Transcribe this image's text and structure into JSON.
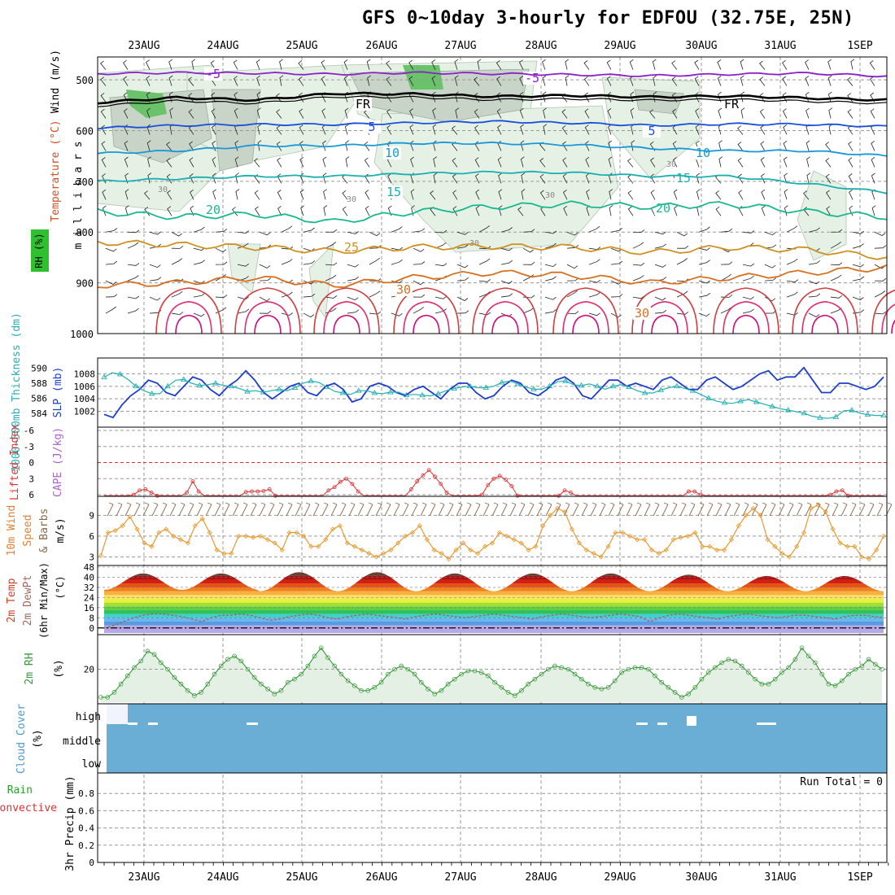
{
  "title": "GFS 0~10day 3-hourly for EDFOU (32.75E, 25N)",
  "dates": [
    "23AUG",
    "24AUG",
    "25AUG",
    "26AUG",
    "27AUG",
    "28AUG",
    "29AUG",
    "30AUG",
    "31AUG",
    "1SEP"
  ],
  "colors": {
    "grid": "#9a9a9a",
    "freezing": "#000000",
    "rh_light": "#e6f1e6",
    "rh_mid": "#c8d4c8",
    "rh_dark": "#8aa08a",
    "rh_green": "#6ac26a",
    "slp": "#1d3fcc",
    "thickness": "#22b0b5",
    "cape": "#e03030",
    "wind10": "#e89a30",
    "barb10": "#8a6a4a",
    "rh2m": "#3a9a3a",
    "rh2m_fill": "#e4f0e4",
    "cloud": "#6aaed6",
    "dew": "#a06a5a"
  },
  "chart_data": [
    {
      "type": "contour",
      "panel": "upper-air",
      "ylabel": "millibars",
      "side_labels": [
        "Wind (m/s)",
        "Temperature (°C)",
        "RH (%)"
      ],
      "y_ticks": [
        500,
        600,
        700,
        800,
        900,
        1000
      ],
      "ylim": [
        455,
        1000
      ],
      "x_labels": [
        "23AUG",
        "24AUG",
        "25AUG",
        "26AUG",
        "27AUG",
        "28AUG",
        "29AUG",
        "30AUG",
        "31AUG",
        "1SEP"
      ],
      "isotherm_labels": [
        "-5",
        "FR",
        "5",
        "10",
        "15",
        "20",
        "25",
        "30"
      ],
      "rh_label": "30",
      "isotherms": [
        {
          "t": -5,
          "p": [
            488,
            486,
            487,
            489,
            486,
            488,
            490,
            492,
            489,
            487,
            493
          ]
        },
        {
          "t": 0,
          "p": [
            545,
            535,
            540,
            527,
            528,
            533,
            531,
            534,
            532,
            536,
            540
          ]
        },
        {
          "t": 5,
          "p": [
            595,
            590,
            588,
            588,
            585,
            582,
            585,
            590,
            587,
            588,
            592
          ]
        },
        {
          "t": 10,
          "p": [
            645,
            640,
            630,
            630,
            625,
            625,
            628,
            635,
            640,
            640,
            650
          ]
        },
        {
          "t": 15,
          "p": [
            700,
            695,
            690,
            690,
            685,
            682,
            683,
            690,
            690,
            705,
            722
          ]
        },
        {
          "t": 20,
          "p": [
            760,
            770,
            765,
            780,
            760,
            750,
            745,
            750,
            745,
            760,
            770
          ]
        },
        {
          "t": 25,
          "p": [
            820,
            825,
            830,
            838,
            830,
            828,
            830,
            840,
            830,
            835,
            850
          ]
        },
        {
          "t": 30,
          "p": [
            905,
            900,
            890,
            905,
            890,
            880,
            885,
            900,
            890,
            880,
            870
          ]
        }
      ]
    },
    {
      "type": "line",
      "panel": "pressure",
      "ylabel_left": "1000~500mb Thickness (dm)",
      "ylabel_right": "SLP (mb)",
      "left_ticks": [
        584,
        586,
        588,
        590
      ],
      "right_ticks": [
        1002,
        1004,
        1006,
        1008
      ],
      "series": [
        {
          "name": "SLP",
          "axis": "right",
          "values": [
            1001.5,
            1001.0,
            1003.0,
            1004.5,
            1005.5,
            1007.0,
            1006.5,
            1005.0,
            1004.5,
            1006.0,
            1007.5,
            1007.0,
            1005.5,
            1004.5,
            1006.0,
            1007.0,
            1008.5,
            1007.0,
            1005.0,
            1004.0,
            1005.0,
            1006.0,
            1006.5,
            1005.0,
            1004.5,
            1006.0,
            1006.5,
            1005.5,
            1003.5,
            1004.0,
            1006.0,
            1006.5,
            1006.0,
            1005.0,
            1004.5,
            1005.5,
            1006.0,
            1005.0,
            1004.0,
            1005.5,
            1006.5,
            1006.5,
            1005.0,
            1004.0,
            1004.5,
            1006.0,
            1007.0,
            1006.5,
            1005.0,
            1004.5,
            1005.5,
            1007.0,
            1007.5,
            1006.5,
            1004.5,
            1004.0,
            1005.5,
            1007.0,
            1007.0,
            1006.0,
            1006.5,
            1006.0,
            1005.5,
            1007.0,
            1007.5,
            1006.5,
            1005.5,
            1005.5,
            1007.0,
            1007.5,
            1006.5,
            1005.5,
            1006.0,
            1007.0,
            1008.0,
            1008.5,
            1007.0,
            1007.5,
            1007.5,
            1009.0,
            1007.0,
            1005.0,
            1005.0,
            1006.5,
            1006.5,
            1006.0,
            1005.5,
            1006.0,
            1007.5
          ]
        },
        {
          "name": "Thickness",
          "axis": "left",
          "values": [
            588.8,
            589.4,
            589.2,
            588.5,
            587.6,
            587.0,
            586.6,
            586.6,
            587.6,
            588.4,
            588.5,
            588.0,
            587.7,
            587.8,
            588.0,
            587.7,
            587.6,
            587.3,
            586.9,
            587.0,
            586.8,
            587.0,
            587.2,
            587.0,
            587.4,
            588.0,
            588.3,
            588.1,
            587.5,
            586.9,
            586.7,
            586.5,
            587.0,
            587.0,
            586.7,
            586.6,
            586.8,
            586.8,
            586.4,
            586.5,
            586.4,
            586.3,
            586.6,
            587.0,
            587.3,
            587.5,
            587.6,
            587.4,
            587.4,
            587.6,
            588.1,
            588.3,
            587.9,
            587.5,
            587.2,
            587.2,
            587.6,
            588.2,
            588.3,
            587.8,
            587.7,
            587.9,
            587.6,
            587.2,
            587.6,
            587.8,
            587.5,
            587.0,
            586.7,
            586.7,
            587.1,
            587.4,
            587.6,
            587.3,
            587.0,
            586.5,
            586.0,
            585.6,
            585.4,
            585.3,
            585.6,
            585.8,
            585.5,
            585.2,
            584.9,
            584.6,
            584.4,
            584.2,
            584.0,
            583.6,
            583.4,
            583.3,
            583.5,
            584.3,
            584.4,
            584.0,
            583.8,
            583.7,
            583.7
          ]
        }
      ]
    },
    {
      "type": "line",
      "panel": "stability",
      "ylabel_left": "Lifted Index",
      "ylabel_right": "CAPE (J/kg)",
      "left_ticks": [
        "-6",
        "-3",
        "0",
        "3",
        "6"
      ],
      "series": [
        {
          "name": "Lifted Index",
          "values": [
            6.5,
            6.5,
            6.5,
            6.5,
            6.5,
            6.0,
            5.2,
            5.0,
            5.6,
            6.2,
            6.5,
            6.5,
            6.5,
            6.4,
            5.6,
            3.5,
            5.4,
            6.5,
            6.5,
            6.5,
            6.5,
            6.5,
            6.5,
            6.5,
            5.5,
            5.4,
            5.4,
            5.3,
            5.0,
            6.2,
            6.5,
            6.5,
            6.5,
            6.5,
            6.5,
            6.5,
            6.5,
            6.5,
            5.2,
            4.6,
            3.6,
            3.0,
            4.0,
            5.4,
            6.5,
            6.5,
            6.5,
            6.5,
            6.5,
            6.5,
            6.5,
            6.5,
            5.0,
            3.5,
            2.4,
            1.4,
            2.6,
            4.0,
            5.6,
            6.5,
            6.5,
            6.5,
            6.5,
            6.5,
            6.0,
            4.2,
            3.0,
            2.5,
            3.2,
            4.4,
            6.2,
            6.5,
            6.5,
            6.5,
            6.5,
            6.5,
            6.5,
            6.2,
            5.2,
            5.6,
            6.5,
            6.5,
            6.5,
            6.5,
            6.5,
            6.5,
            6.5,
            6.5,
            6.5,
            6.5,
            6.5,
            6.5,
            6.5,
            6.5,
            6.5,
            6.5,
            6.5,
            6.5,
            6.5,
            5.4,
            5.4,
            6.0,
            6.5,
            6.5,
            6.5,
            6.5,
            6.5,
            6.5,
            6.5,
            6.5,
            6.5,
            6.5,
            6.5,
            6.5,
            6.5,
            6.5,
            6.5,
            6.5,
            6.5,
            6.5,
            6.5,
            6.5,
            6.5,
            6.0,
            5.4,
            5.2,
            6.2,
            6.5,
            6.5,
            6.5,
            6.5,
            6.5,
            6.5
          ]
        }
      ]
    },
    {
      "type": "line",
      "panel": "wind10m",
      "ylabel": "10m Wind Speed & Barbs (m/s)",
      "ticks": [
        3,
        6,
        9
      ],
      "ylim": [
        2.0,
        11.5
      ],
      "series": [
        {
          "name": "Speed",
          "values": [
            3.2,
            6.5,
            6.8,
            7.5,
            8.8,
            7.0,
            5.0,
            4.5,
            6.5,
            7.0,
            6.0,
            5.5,
            5.0,
            7.5,
            8.5,
            6.5,
            4.0,
            3.5,
            3.5,
            6.0,
            6.0,
            5.8,
            6.0,
            5.5,
            5.0,
            4.0,
            6.5,
            6.5,
            6.0,
            4.5,
            4.5,
            5.5,
            7.0,
            7.5,
            5.0,
            4.5,
            4.0,
            3.5,
            3.0,
            3.5,
            4.0,
            5.0,
            6.0,
            6.5,
            7.5,
            5.5,
            4.0,
            3.5,
            2.7,
            4.0,
            5.0,
            4.0,
            3.5,
            4.5,
            5.0,
            6.5,
            6.0,
            5.5,
            5.0,
            4.0,
            4.5,
            7.5,
            9.0,
            10.0,
            9.5,
            7.0,
            5.0,
            4.0,
            3.5,
            3.0,
            4.5,
            6.5,
            6.5,
            6.0,
            5.5,
            5.5,
            4.0,
            3.5,
            4.0,
            5.5,
            5.8,
            6.0,
            6.5,
            4.5,
            4.5,
            4.0,
            4.0,
            5.5,
            7.5,
            9.0,
            10.0,
            9.0,
            5.5,
            4.5,
            3.5,
            3.0,
            4.5,
            6.5,
            10.0,
            10.5,
            9.5,
            7.0,
            5.0,
            4.5,
            4.5,
            3.0,
            2.7,
            4.0,
            6.0
          ]
        },
        {
          "name": "Barbs",
          "values": [
            3.2,
            6.5,
            6.8,
            7.5,
            8.8,
            7.0,
            5.0,
            4.5,
            6.5,
            7.0,
            6.0,
            5.5,
            5.0,
            7.5,
            8.5,
            6.5,
            4.0,
            3.5,
            3.5,
            6.0,
            6.0,
            5.8,
            6.0,
            5.5,
            5.0,
            4.0,
            6.5,
            6.5,
            6.0,
            4.5,
            4.5,
            5.5,
            7.0,
            7.5,
            5.0,
            4.5,
            4.0,
            3.5,
            3.0,
            3.5,
            4.0,
            5.0,
            6.0,
            6.5,
            7.5,
            5.5,
            4.0,
            3.5,
            2.7,
            4.0,
            5.0,
            4.0,
            3.5,
            4.5,
            5.0,
            6.5,
            6.0,
            5.5,
            5.0,
            4.0,
            4.5,
            7.5,
            9.0,
            10.0,
            9.5,
            7.0,
            5.0,
            4.0,
            3.5,
            3.0,
            4.5,
            6.5,
            6.5,
            6.0,
            5.5,
            5.5,
            4.0,
            3.5,
            4.0,
            5.5,
            5.8,
            6.0,
            6.5,
            4.5,
            4.5,
            4.0,
            4.0,
            5.5,
            7.5,
            9.0,
            10.0,
            9.0,
            5.5,
            4.5,
            3.5,
            3.0,
            4.5,
            6.5,
            10.0,
            10.5,
            9.5,
            7.0,
            5.0,
            4.5,
            4.5,
            3.0,
            2.7,
            4.0,
            6.0
          ]
        }
      ]
    },
    {
      "type": "area",
      "panel": "temp2m",
      "ylabel": "2m Temp / 2m DewPt (6hr Min/Max) (°C)",
      "ticks": [
        0,
        8,
        16,
        24,
        32,
        40,
        48
      ],
      "ylim": [
        -4,
        48
      ],
      "series": [
        {
          "name": "2m Temp",
          "max": [
            43,
            43,
            44,
            44,
            43,
            43,
            43,
            42,
            41,
            41
          ],
          "min": [
            30,
            30,
            29,
            29,
            29,
            29,
            29,
            29,
            29,
            29
          ]
        },
        {
          "name": "2m DewPt",
          "values": [
            0,
            2,
            5,
            8,
            10,
            11,
            11,
            10,
            9,
            7,
            5,
            8,
            10,
            10,
            11,
            10,
            8,
            6,
            7,
            9,
            10,
            11,
            10,
            8,
            7,
            9,
            10,
            11,
            10,
            9,
            8,
            7,
            9,
            10,
            11,
            10,
            9,
            8,
            9,
            10,
            11,
            10,
            9,
            8,
            7,
            9,
            10,
            11,
            10,
            9,
            8,
            9,
            10,
            11,
            10,
            9,
            5,
            8,
            10,
            11,
            10,
            9,
            8,
            7,
            9,
            10,
            11,
            10,
            9,
            8,
            9,
            10,
            10,
            9,
            8,
            7,
            9,
            10,
            10,
            9,
            8
          ]
        }
      ]
    },
    {
      "type": "line",
      "panel": "rh2m",
      "ylabel": "2m RH (%)",
      "ticks": [
        20
      ],
      "ylim": [
        0,
        40
      ],
      "series": [
        {
          "name": "2m RH",
          "values": [
            3,
            3,
            6,
            11,
            16,
            21,
            25,
            31,
            29,
            24,
            20,
            15,
            11,
            7,
            4,
            6,
            11,
            17,
            22,
            26,
            28,
            25,
            20,
            15,
            11,
            8,
            5,
            7,
            12,
            14,
            17,
            22,
            28,
            33,
            27,
            22,
            17,
            13,
            10,
            7,
            7,
            9,
            12,
            17,
            20,
            22,
            20,
            17,
            12,
            8,
            5,
            7,
            11,
            14,
            17,
            19,
            19,
            18,
            16,
            12,
            9,
            6,
            4,
            7,
            11,
            14,
            17,
            20,
            22,
            21,
            20,
            17,
            14,
            11,
            9,
            8,
            9,
            13,
            18,
            20,
            21,
            21,
            20,
            16,
            12,
            9,
            6,
            3,
            5,
            9,
            14,
            18,
            21,
            24,
            26,
            25,
            22,
            18,
            14,
            11,
            11,
            14,
            18,
            21,
            26,
            33,
            28,
            24,
            17,
            11,
            10,
            13,
            17,
            20,
            22,
            26,
            23,
            20
          ]
        }
      ]
    },
    {
      "type": "heatmap",
      "panel": "cloud",
      "ylabel": "Cloud Cover (%)",
      "row_labels": [
        "high",
        "middle",
        "low"
      ],
      "value_percent": 100
    },
    {
      "type": "bar",
      "panel": "precip",
      "ylabel": "3hr Precip (mm)",
      "legend": [
        "Total / Rain",
        "Convective"
      ],
      "ticks": [
        "0",
        "0.2",
        "0.4",
        "0.6",
        "0.8"
      ],
      "ylim": [
        0,
        1
      ],
      "note": "Run Total = 0",
      "values": []
    }
  ]
}
